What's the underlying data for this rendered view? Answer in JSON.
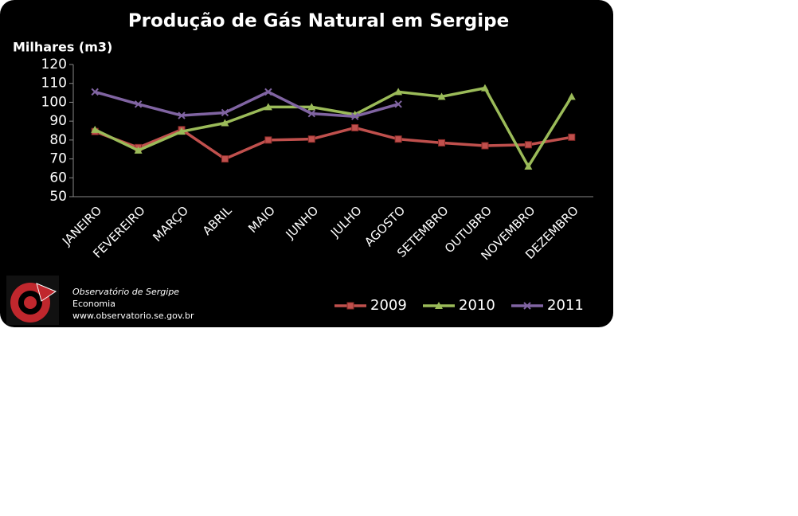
{
  "chart_data": {
    "type": "line",
    "title": "Produção de Gás Natural em Sergipe",
    "y_label": "Milhares (m3)",
    "categories": [
      "JANEIRO",
      "FEVEREIRO",
      "MARÇO",
      "ABRIL",
      "MAIO",
      "JUNHO",
      "JULHO",
      "AGOSTO",
      "SETEMBRO",
      "OUTUBRO",
      "NOVEMBRO",
      "DEZEMBRO"
    ],
    "series": [
      {
        "name": "2009",
        "color": "#c0504d",
        "marker": "square",
        "values": [
          84.5,
          76,
          85.5,
          70,
          80,
          80.5,
          86.5,
          80.5,
          78.5,
          77,
          77.5,
          81.5
        ]
      },
      {
        "name": "2010",
        "color": "#9bbb59",
        "marker": "triangle",
        "values": [
          85.5,
          74.5,
          84.5,
          89,
          97.5,
          97.5,
          93.5,
          105.5,
          103,
          107.5,
          66,
          103
        ]
      },
      {
        "name": "2011",
        "color": "#8064a2",
        "marker": "x",
        "values": [
          105.5,
          99,
          93,
          94.5,
          105.5,
          94,
          92.5,
          99,
          null,
          null,
          null,
          null
        ]
      }
    ],
    "ylim": [
      50,
      120
    ],
    "yticks": [
      50,
      60,
      70,
      80,
      90,
      100,
      110,
      120
    ],
    "legend": "bottom-right",
    "footer": {
      "name": "Observatório de Sergipe",
      "section": "Economia",
      "url": "www.observatorio.se.gov.br"
    }
  }
}
